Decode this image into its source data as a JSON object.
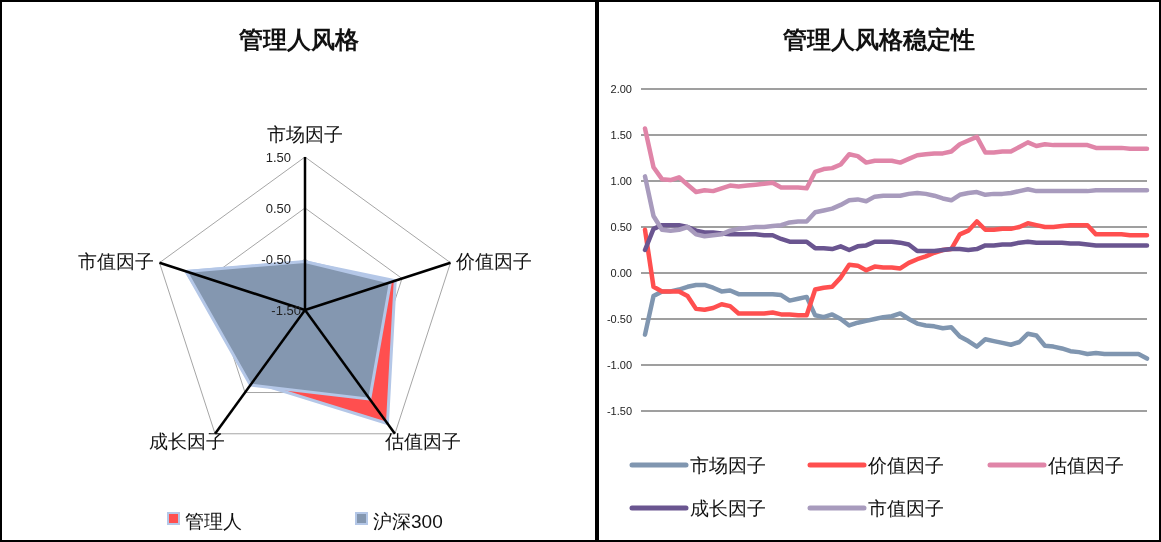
{
  "chart_data": [
    {
      "type": "radar",
      "title": "管理人风格",
      "categories": [
        "市场因子",
        "价值因子",
        "估值因子",
        "成长因子",
        "市值因子"
      ],
      "series": [
        {
          "name": "管理人",
          "color": "#ff4f4f",
          "values": [
            -0.56,
            0.36,
            1.25,
            0.24,
            0.95
          ]
        },
        {
          "name": "沪深300",
          "color": "#8497b0",
          "values": [
            -0.55,
            0.26,
            0.66,
            0.32,
            0.95
          ]
        }
      ],
      "ylim": [
        -1.5,
        1.5
      ],
      "yticks": [
        {
          "value": -1.5,
          "label": "-1.50"
        },
        {
          "value": -0.5,
          "label": "-0.50"
        },
        {
          "value": 0.5,
          "label": "0.50"
        },
        {
          "value": 1.5,
          "label": "1.50"
        }
      ],
      "grid": true,
      "legend": "bottom"
    },
    {
      "type": "line",
      "title": "管理人风格稳定性",
      "categories": [
        null,
        null,
        null,
        null,
        null,
        null,
        null,
        null,
        null,
        null,
        null,
        null,
        null,
        null,
        null,
        null,
        null,
        null,
        null,
        null,
        null,
        null,
        null,
        null,
        null,
        null,
        null,
        null,
        null,
        null,
        null,
        null,
        null,
        null,
        null,
        null,
        null,
        null,
        null,
        null,
        null,
        null,
        null,
        null,
        null,
        null,
        null,
        null,
        null,
        null,
        null,
        null,
        null,
        null,
        null,
        null,
        null,
        null,
        null,
        null
      ],
      "series": [
        {
          "name": "市场因子",
          "color": "#8096b0",
          "values": [
            -0.67,
            -0.25,
            -0.2,
            -0.2,
            -0.18,
            -0.15,
            -0.13,
            -0.13,
            -0.16,
            -0.2,
            -0.19,
            -0.23,
            -0.23,
            -0.23,
            -0.23,
            -0.23,
            -0.24,
            -0.3,
            -0.28,
            -0.26,
            -0.46,
            -0.48,
            -0.45,
            -0.5,
            -0.57,
            -0.54,
            -0.52,
            -0.5,
            -0.48,
            -0.47,
            -0.44,
            -0.5,
            -0.55,
            -0.57,
            -0.58,
            -0.6,
            -0.59,
            -0.69,
            -0.74,
            -0.8,
            -0.72,
            -0.74,
            -0.76,
            -0.78,
            -0.75,
            -0.66,
            -0.68,
            -0.79,
            -0.8,
            -0.82,
            -0.85,
            -0.86,
            -0.88,
            -0.87,
            -0.88,
            -0.88,
            -0.88,
            -0.88,
            -0.88,
            -0.93
          ]
        },
        {
          "name": "价值因子",
          "color": "#ff4f4f",
          "values": [
            0.47,
            -0.15,
            -0.2,
            -0.2,
            -0.2,
            -0.25,
            -0.39,
            -0.4,
            -0.38,
            -0.34,
            -0.36,
            -0.44,
            -0.44,
            -0.44,
            -0.44,
            -0.43,
            -0.45,
            -0.45,
            -0.46,
            -0.46,
            -0.18,
            -0.16,
            -0.15,
            -0.05,
            0.09,
            0.08,
            0.03,
            0.07,
            0.06,
            0.06,
            0.05,
            0.11,
            0.15,
            0.18,
            0.22,
            0.25,
            0.26,
            0.42,
            0.46,
            0.56,
            0.47,
            0.47,
            0.48,
            0.48,
            0.5,
            0.54,
            0.52,
            0.5,
            0.5,
            0.51,
            0.52,
            0.52,
            0.52,
            0.42,
            0.42,
            0.42,
            0.42,
            0.41,
            0.41,
            0.41
          ]
        },
        {
          "name": "估值因子",
          "color": "#e085a8",
          "values": [
            1.57,
            1.15,
            1.02,
            1.01,
            1.04,
            0.96,
            0.88,
            0.9,
            0.89,
            0.92,
            0.95,
            0.94,
            0.95,
            0.96,
            0.97,
            0.98,
            0.93,
            0.93,
            0.93,
            0.92,
            1.1,
            1.13,
            1.14,
            1.18,
            1.29,
            1.27,
            1.2,
            1.22,
            1.22,
            1.22,
            1.2,
            1.24,
            1.28,
            1.29,
            1.3,
            1.3,
            1.32,
            1.4,
            1.44,
            1.48,
            1.31,
            1.31,
            1.32,
            1.32,
            1.37,
            1.42,
            1.38,
            1.4,
            1.39,
            1.39,
            1.39,
            1.39,
            1.39,
            1.36,
            1.36,
            1.36,
            1.36,
            1.35,
            1.35,
            1.35
          ]
        },
        {
          "name": "成长因子",
          "color": "#6a5590",
          "values": [
            0.25,
            0.48,
            0.52,
            0.52,
            0.52,
            0.5,
            0.46,
            0.44,
            0.44,
            0.43,
            0.42,
            0.42,
            0.42,
            0.42,
            0.41,
            0.41,
            0.37,
            0.34,
            0.34,
            0.34,
            0.27,
            0.27,
            0.26,
            0.29,
            0.25,
            0.29,
            0.3,
            0.34,
            0.34,
            0.34,
            0.33,
            0.31,
            0.24,
            0.24,
            0.24,
            0.25,
            0.26,
            0.26,
            0.25,
            0.26,
            0.3,
            0.3,
            0.31,
            0.31,
            0.33,
            0.34,
            0.33,
            0.33,
            0.33,
            0.33,
            0.32,
            0.32,
            0.31,
            0.3,
            0.3,
            0.3,
            0.3,
            0.3,
            0.3,
            0.3
          ]
        },
        {
          "name": "市值因子",
          "color": "#a89bbd",
          "values": [
            1.05,
            0.62,
            0.47,
            0.46,
            0.47,
            0.5,
            0.42,
            0.4,
            0.41,
            0.42,
            0.46,
            0.48,
            0.49,
            0.5,
            0.5,
            0.51,
            0.52,
            0.55,
            0.56,
            0.56,
            0.66,
            0.68,
            0.7,
            0.74,
            0.79,
            0.8,
            0.78,
            0.83,
            0.84,
            0.84,
            0.84,
            0.86,
            0.87,
            0.86,
            0.84,
            0.81,
            0.79,
            0.85,
            0.87,
            0.88,
            0.85,
            0.86,
            0.86,
            0.87,
            0.89,
            0.91,
            0.89,
            0.89,
            0.89,
            0.89,
            0.89,
            0.89,
            0.89,
            0.9,
            0.9,
            0.9,
            0.9,
            0.9,
            0.9,
            0.9
          ]
        }
      ],
      "ylim": [
        -1.5,
        2.0
      ],
      "yticks": [
        {
          "value": -1.5,
          "label": "-1.50"
        },
        {
          "value": -1.0,
          "label": "-1.00"
        },
        {
          "value": -0.5,
          "label": "-0.50"
        },
        {
          "value": 0,
          "label": "0.00"
        },
        {
          "value": 0.5,
          "label": "0.50"
        },
        {
          "value": 1.0,
          "label": "1.00"
        },
        {
          "value": 1.5,
          "label": "1.50"
        },
        {
          "value": 2.0,
          "label": "2.00"
        }
      ],
      "grid": "y",
      "legend": "bottom",
      "marker": "none",
      "line_style": "solid"
    }
  ]
}
